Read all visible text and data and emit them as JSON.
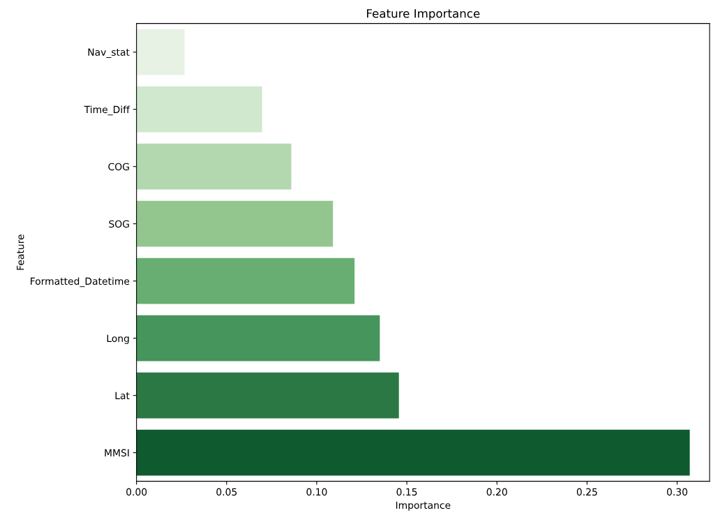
{
  "chart_data": {
    "type": "bar",
    "orientation": "horizontal",
    "title": "Feature Importance",
    "xlabel": "Importance",
    "ylabel": "Feature",
    "categories": [
      "Nav_stat",
      "Time_Diff",
      "COG",
      "SOG",
      "Formatted_Datetime",
      "Long",
      "Lat",
      "MMSI"
    ],
    "values": [
      0.0267,
      0.0697,
      0.0859,
      0.109,
      0.121,
      0.135,
      0.1456,
      0.307
    ],
    "colors": [
      "#e7f2e4",
      "#d0e8cd",
      "#b3d8b0",
      "#93c68f",
      "#68ae73",
      "#45955c",
      "#2b7845",
      "#0f5a2e"
    ],
    "xlim": [
      0,
      0.318
    ],
    "xticks": [
      {
        "value": 0,
        "label": "0.00"
      },
      {
        "value": 0.05,
        "label": "0.05"
      },
      {
        "value": 0.1,
        "label": "0.10"
      },
      {
        "value": 0.15,
        "label": "0.15"
      },
      {
        "value": 0.2,
        "label": "0.20"
      },
      {
        "value": 0.25,
        "label": "0.25"
      },
      {
        "value": 0.3,
        "label": "0.30"
      }
    ],
    "grid": false
  }
}
